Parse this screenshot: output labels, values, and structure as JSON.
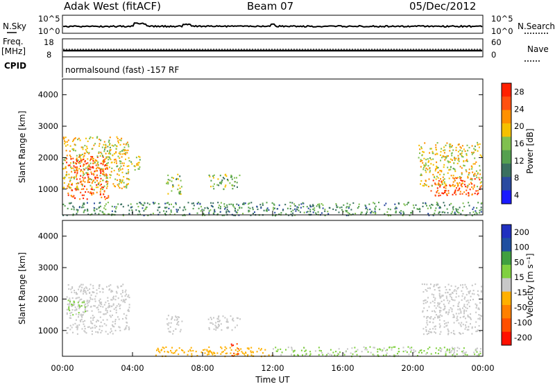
{
  "header": {
    "station": "Adak West (fitACF)",
    "beam": "Beam 07",
    "date": "05/Dec/2012"
  },
  "strips": {
    "nsky_label": "N.Sky",
    "nsky_ticks": [
      "10^5",
      "10^0"
    ],
    "nsearch_label": "N.Search",
    "nsearch_ticks": [
      "10^5",
      "10^0"
    ],
    "freq_label_1": "Freq.",
    "freq_label_2": "[MHz]",
    "freq_ticks": [
      "18",
      "8"
    ],
    "nave_label": "Nave",
    "nave_ticks": [
      "60",
      "0"
    ],
    "cpid_label": "CPID",
    "cpid_text": "normalsound (fast) -157 RF"
  },
  "colors": {
    "power": [
      "#1a1aff",
      "#2a4aa0",
      "#3a7060",
      "#55a050",
      "#80c050",
      "#f5c000",
      "#ff9000",
      "#ff5010",
      "#ff2000"
    ],
    "velocity": [
      "#2030c0",
      "#2050a0",
      "#40a040",
      "#80d040",
      "#c8c8c8",
      "#ffb000",
      "#ff8000",
      "#ff5000",
      "#ff1000"
    ]
  },
  "chart_data": [
    {
      "type": "heatmap",
      "name": "power",
      "xlabel": "",
      "ylabel": "Slant Range [km]",
      "x_ticks": [
        "00:00",
        "04:00",
        "08:00",
        "12:00",
        "16:00",
        "20:00",
        "00:00"
      ],
      "xlim_hours": [
        0,
        24
      ],
      "y_ticks": [
        1000,
        2000,
        3000,
        4000
      ],
      "ylim_km": [
        180,
        4500
      ],
      "colorbar_label": "Power [dB]",
      "colorbar_ticks": [
        "28",
        "24",
        "20",
        "16",
        "12",
        "8",
        "4"
      ],
      "colorbar_range": [
        0,
        30
      ],
      "regions": [
        {
          "t0": 0.2,
          "t1": 2.6,
          "r0": 700,
          "r1": 2100,
          "value": 26
        },
        {
          "t0": 0.0,
          "t1": 3.8,
          "r0": 1000,
          "r1": 2700,
          "value": 18
        },
        {
          "t0": 3.8,
          "t1": 4.4,
          "r0": 1600,
          "r1": 2100,
          "value": 16
        },
        {
          "t0": 5.9,
          "t1": 6.8,
          "r0": 850,
          "r1": 1500,
          "value": 14
        },
        {
          "t0": 8.3,
          "t1": 10.1,
          "r0": 1000,
          "r1": 1500,
          "value": 14
        },
        {
          "t0": 21.0,
          "t1": 23.9,
          "r0": 800,
          "r1": 1400,
          "value": 26
        },
        {
          "t0": 20.3,
          "t1": 23.9,
          "r0": 1100,
          "r1": 2500,
          "value": 18
        },
        {
          "t0": 0.0,
          "t1": 23.9,
          "r0": 180,
          "r1": 600,
          "value": 10
        }
      ]
    },
    {
      "type": "heatmap",
      "name": "velocity",
      "xlabel": "Time UT",
      "ylabel": "Slant Range [km]",
      "x_ticks": [
        "00:00",
        "04:00",
        "08:00",
        "12:00",
        "16:00",
        "20:00",
        "00:00"
      ],
      "xlim_hours": [
        0,
        24
      ],
      "y_ticks": [
        1000,
        2000,
        3000,
        4000
      ],
      "ylim_km": [
        180,
        4500
      ],
      "colorbar_label": "Velocity [m s⁻¹]",
      "colorbar_ticks": [
        "200",
        "100",
        "50",
        "15",
        "-15",
        "-50",
        "-100",
        "-200"
      ],
      "colorbar_range": [
        -250,
        250
      ],
      "regions": [
        {
          "t0": 0.2,
          "t1": 3.8,
          "r0": 900,
          "r1": 2500,
          "value": 0
        },
        {
          "t0": 5.9,
          "t1": 6.8,
          "r0": 850,
          "r1": 1500,
          "value": 0
        },
        {
          "t0": 8.3,
          "t1": 10.1,
          "r0": 1000,
          "r1": 1500,
          "value": 0
        },
        {
          "t0": 20.5,
          "t1": 23.9,
          "r0": 900,
          "r1": 2500,
          "value": 0
        },
        {
          "t0": 0.3,
          "t1": 1.3,
          "r0": 1500,
          "r1": 2000,
          "value": 40
        },
        {
          "t0": 5.2,
          "t1": 12.0,
          "r0": 200,
          "r1": 500,
          "value": -60
        },
        {
          "t0": 9.6,
          "t1": 10.1,
          "r0": 200,
          "r1": 600,
          "value": -180
        },
        {
          "t0": 12.0,
          "t1": 23.9,
          "r0": 200,
          "r1": 500,
          "value": 30
        }
      ]
    }
  ]
}
